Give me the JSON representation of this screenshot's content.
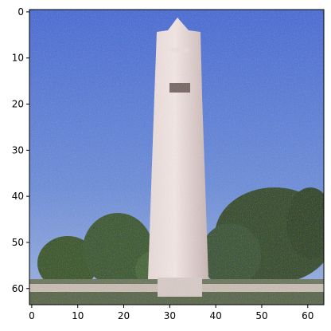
{
  "image": {
    "subject": "pixelated photo of a tall white tower against blue sky with trees",
    "sky_color": "#5f7fcf",
    "tower_color": "#d9c8c6",
    "tree_color": "#3f5a36"
  },
  "axes": {
    "x_ticks": [
      "0",
      "10",
      "20",
      "30",
      "40",
      "50",
      "60"
    ],
    "y_ticks": [
      "0",
      "10",
      "20",
      "30",
      "40",
      "50",
      "60"
    ],
    "xlim": [
      -0.5,
      63.5
    ],
    "ylim": [
      63.5,
      -0.5
    ]
  }
}
